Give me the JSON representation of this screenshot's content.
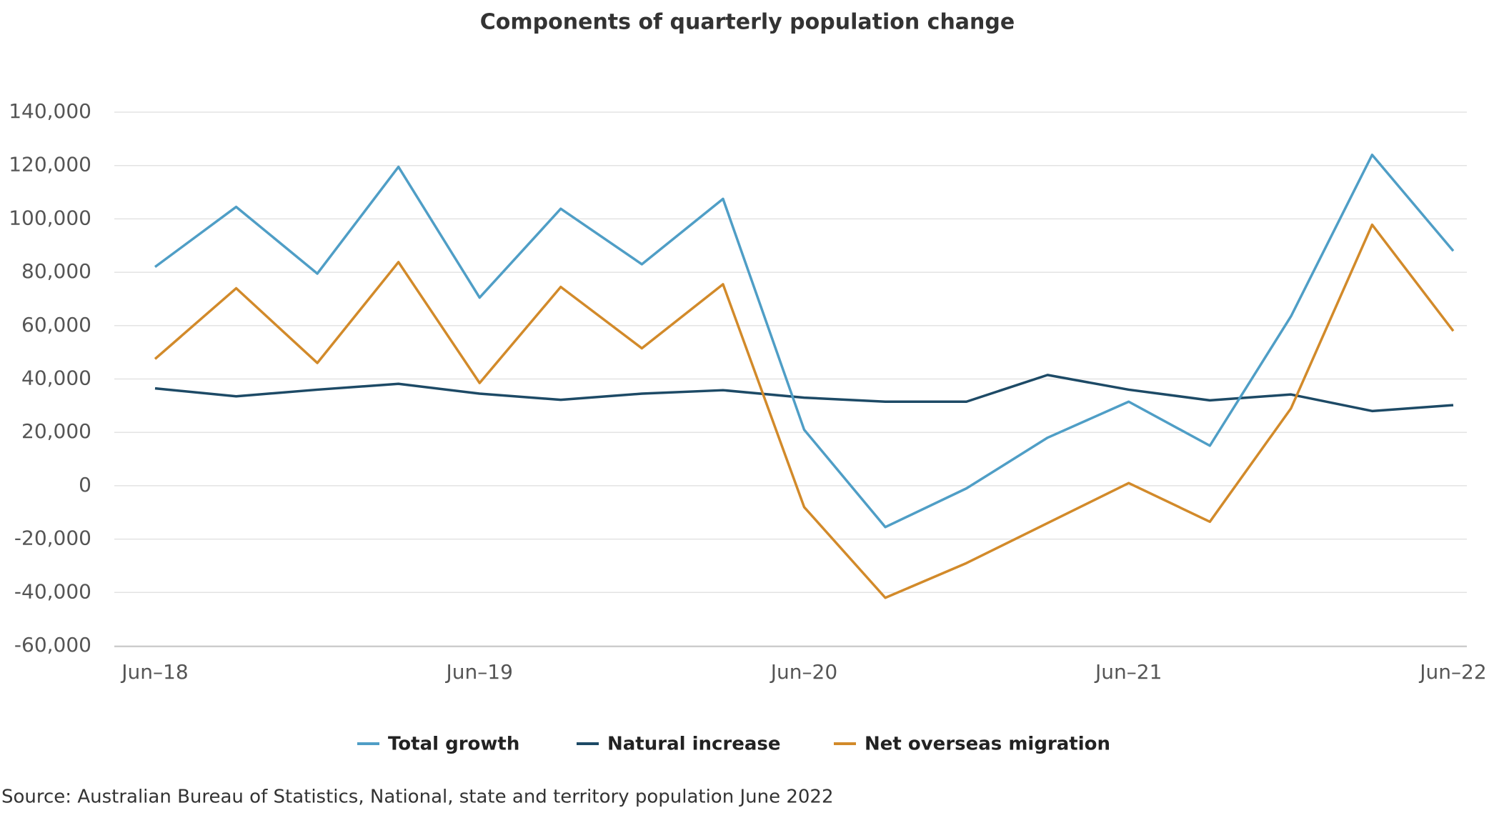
{
  "chart_data": {
    "type": "line",
    "title": "Components of quarterly population change",
    "categories": [
      "Jun–18",
      null,
      null,
      null,
      "Jun–19",
      null,
      null,
      null,
      "Jun–20",
      null,
      null,
      null,
      "Jun–21",
      null,
      null,
      null,
      "Jun–22"
    ],
    "series": [
      {
        "name": "Total growth",
        "color": "#4f9ec6",
        "values": [
          82000,
          104500,
          79500,
          119500,
          70500,
          103800,
          83000,
          107500,
          21000,
          -15500,
          -1000,
          18000,
          31500,
          15000,
          63500,
          124000,
          88000
        ]
      },
      {
        "name": "Natural increase",
        "color": "#1d4a66",
        "values": [
          36500,
          33500,
          36000,
          38200,
          34500,
          32200,
          34500,
          35800,
          33000,
          31500,
          31500,
          41500,
          36000,
          32000,
          34200,
          28000,
          30200
        ]
      },
      {
        "name": "Net overseas migration",
        "color": "#d28a2a",
        "values": [
          47500,
          74000,
          46000,
          83800,
          38500,
          74500,
          51500,
          75500,
          -8000,
          -42000,
          -29000,
          -14000,
          1000,
          -13500,
          29000,
          97800,
          58000
        ]
      }
    ],
    "ylim": [
      -60000,
      140000
    ],
    "yticks": [
      {
        "value": -60000,
        "label": "-60,000"
      },
      {
        "value": -40000,
        "label": "-40,000"
      },
      {
        "value": -20000,
        "label": "-20,000"
      },
      0,
      {
        "value": 20000,
        "label": "20,000"
      },
      {
        "value": 40000,
        "label": "40,000"
      },
      {
        "value": 60000,
        "label": "60,000"
      },
      {
        "value": 80000,
        "label": "80,000"
      },
      {
        "value": 100000,
        "label": "100,000"
      },
      {
        "value": 120000,
        "label": "120,000"
      },
      {
        "value": 140000,
        "label": "140,000"
      }
    ],
    "grid": true,
    "source": "Source: Australian Bureau of Statistics, National, state and territory population June 2022"
  }
}
